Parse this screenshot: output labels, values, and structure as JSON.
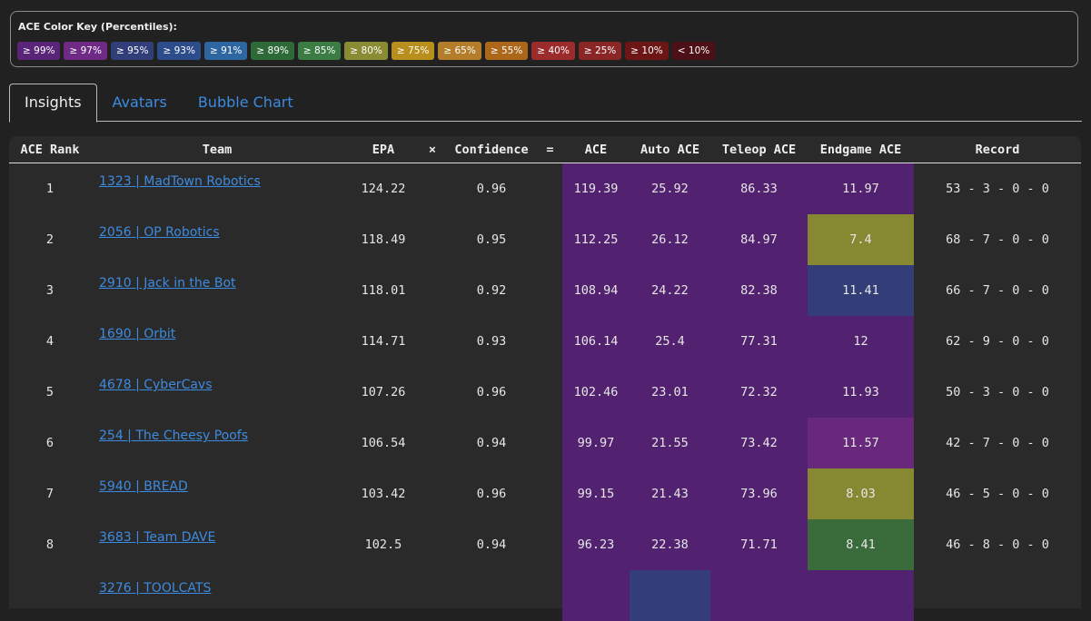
{
  "color_key": {
    "title": "ACE Color Key (Percentiles):",
    "items": [
      {
        "label": "≥ 99%",
        "color": "#5a2478"
      },
      {
        "label": "≥ 97%",
        "color": "#6e2a84"
      },
      {
        "label": "≥ 95%",
        "color": "#323e7a"
      },
      {
        "label": "≥ 93%",
        "color": "#2c4c8c"
      },
      {
        "label": "≥ 91%",
        "color": "#2e66a2"
      },
      {
        "label": "≥ 89%",
        "color": "#2e6a38"
      },
      {
        "label": "≥ 85%",
        "color": "#3b7c44"
      },
      {
        "label": "≥ 80%",
        "color": "#8a8c34"
      },
      {
        "label": "≥ 75%",
        "color": "#b88e1c"
      },
      {
        "label": "≥ 65%",
        "color": "#b37d2a"
      },
      {
        "label": "≥ 55%",
        "color": "#ac671a"
      },
      {
        "label": "≥ 40%",
        "color": "#9c2c2c"
      },
      {
        "label": "≥ 25%",
        "color": "#8b2626"
      },
      {
        "label": "≥ 10%",
        "color": "#6c1616"
      },
      {
        "label": "< 10%",
        "color": "#4c1016"
      }
    ]
  },
  "tabs": [
    "Insights",
    "Avatars",
    "Bubble Chart"
  ],
  "table": {
    "headers": [
      "ACE Rank",
      "Team",
      "EPA",
      "×",
      "Confidence",
      "=",
      "ACE",
      "Auto ACE",
      "Teleop ACE",
      "Endgame ACE",
      "Record"
    ],
    "rows": [
      {
        "rank": 1,
        "team": "1323 | MadTown Robotics",
        "epa": 124.22,
        "confidence": 0.96,
        "ace": 119.39,
        "auto": 25.92,
        "teleop": 86.33,
        "endgame": 11.97,
        "record": "53 - 3 - 0 - 0",
        "colors": {
          "ace": "#522270",
          "auto": "#522270",
          "teleop": "#522270",
          "endgame": "#522270"
        }
      },
      {
        "rank": 2,
        "team": "2056 | OP Robotics",
        "epa": 118.49,
        "confidence": 0.95,
        "ace": 112.25,
        "auto": 26.12,
        "teleop": 84.97,
        "endgame": 7.4,
        "record": "68 - 7 - 0 - 0",
        "colors": {
          "ace": "#522270",
          "auto": "#522270",
          "teleop": "#522270",
          "endgame": "#868832"
        }
      },
      {
        "rank": 3,
        "team": "2910 | Jack in the Bot",
        "epa": 118.01,
        "confidence": 0.92,
        "ace": 108.94,
        "auto": 24.22,
        "teleop": 82.38,
        "endgame": 11.41,
        "record": "66 - 7 - 0 - 0",
        "colors": {
          "ace": "#522270",
          "auto": "#522270",
          "teleop": "#522270",
          "endgame": "#333e78"
        }
      },
      {
        "rank": 4,
        "team": "1690 | Orbit",
        "epa": 114.71,
        "confidence": 0.93,
        "ace": 106.14,
        "auto": 25.4,
        "teleop": 77.31,
        "endgame": 12,
        "record": "62 - 9 - 0 - 0",
        "colors": {
          "ace": "#522270",
          "auto": "#522270",
          "teleop": "#522270",
          "endgame": "#522270"
        }
      },
      {
        "rank": 5,
        "team": "4678 | CyberCavs",
        "epa": 107.26,
        "confidence": 0.96,
        "ace": 102.46,
        "auto": 23.01,
        "teleop": 72.32,
        "endgame": 11.93,
        "record": "50 - 3 - 0 - 0",
        "colors": {
          "ace": "#522270",
          "auto": "#522270",
          "teleop": "#522270",
          "endgame": "#522270"
        }
      },
      {
        "rank": 6,
        "team": "254 | The Cheesy Poofs",
        "epa": 106.54,
        "confidence": 0.94,
        "ace": 99.97,
        "auto": 21.55,
        "teleop": 73.42,
        "endgame": 11.57,
        "record": "42 - 7 - 0 - 0",
        "colors": {
          "ace": "#522270",
          "auto": "#522270",
          "teleop": "#522270",
          "endgame": "#68287c"
        }
      },
      {
        "rank": 7,
        "team": "5940 | BREAD",
        "epa": 103.42,
        "confidence": 0.96,
        "ace": 99.15,
        "auto": 21.43,
        "teleop": 73.96,
        "endgame": 8.03,
        "record": "46 - 5 - 0 - 0",
        "colors": {
          "ace": "#522270",
          "auto": "#522270",
          "teleop": "#522270",
          "endgame": "#868832"
        }
      },
      {
        "rank": 8,
        "team": "3683 | Team DAVE",
        "epa": 102.5,
        "confidence": 0.94,
        "ace": 96.23,
        "auto": 22.38,
        "teleop": 71.71,
        "endgame": 8.41,
        "record": "46 - 8 - 0 - 0",
        "colors": {
          "ace": "#522270",
          "auto": "#522270",
          "teleop": "#522270",
          "endgame": "#3a6b3b"
        }
      },
      {
        "team": "3276 | TOOLCATS",
        "colors": {
          "ace": "#522270",
          "auto": "#333e78",
          "teleop": "#522270",
          "endgame": "#522270"
        }
      }
    ]
  }
}
